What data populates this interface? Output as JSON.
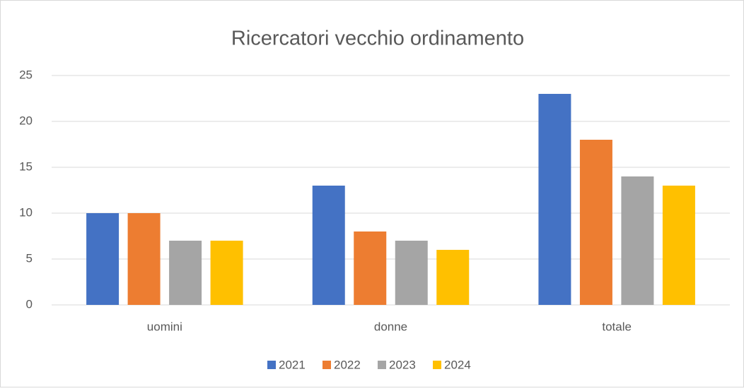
{
  "chart_data": {
    "type": "bar",
    "title": "Ricercatori vecchio ordinamento",
    "categories": [
      "uomini",
      "donne",
      "totale"
    ],
    "series": [
      {
        "name": "2021",
        "color": "#4472c4",
        "values": [
          10,
          13,
          23
        ]
      },
      {
        "name": "2022",
        "color": "#ed7d31",
        "values": [
          10,
          8,
          18
        ]
      },
      {
        "name": "2023",
        "color": "#a5a5a5",
        "values": [
          7,
          7,
          14
        ]
      },
      {
        "name": "2024",
        "color": "#ffc000",
        "values": [
          7,
          6,
          13
        ]
      }
    ],
    "ylim": [
      0,
      25
    ],
    "yticks": [
      0,
      5,
      10,
      15,
      20,
      25
    ],
    "grid": true,
    "legend": "bottom"
  }
}
